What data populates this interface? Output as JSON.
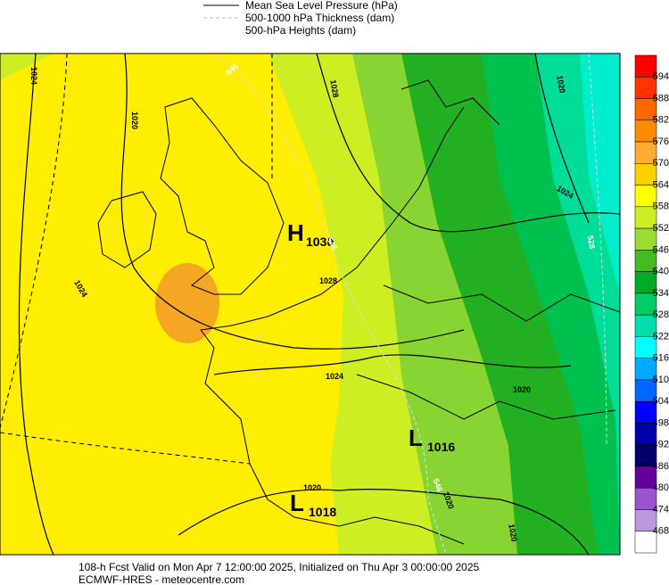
{
  "legend": {
    "items": [
      "Mean Sea Level Pressure (hPa)",
      "500-1000 hPa Thickness (dam)",
      "500-hPa Heights (dam)"
    ]
  },
  "colorbar": {
    "labels": [
      "594",
      "588",
      "582",
      "576",
      "570",
      "564",
      "558",
      "552",
      "546",
      "540",
      "534",
      "528",
      "522",
      "516",
      "510",
      "504",
      "498",
      "492",
      "486",
      "480",
      "474",
      "468"
    ],
    "colors": [
      "#ff0000",
      "#ff3300",
      "#ff6600",
      "#ff8c00",
      "#ffaa33",
      "#ffd000",
      "#ffff00",
      "#ccee22",
      "#99dd33",
      "#44bb22",
      "#00aa22",
      "#00cc66",
      "#00ddaa",
      "#00ffff",
      "#00aaff",
      "#0066ff",
      "#0000ff",
      "#0000aa",
      "#000066",
      "#660099",
      "#9955cc",
      "#bb99dd",
      "#ffffff"
    ]
  },
  "centers": [
    {
      "symbol": "H",
      "value": "1030"
    },
    {
      "symbol": "L",
      "value": "1016"
    },
    {
      "symbol": "L",
      "value": "1018"
    }
  ],
  "contour_labels": [
    "1024",
    "1020",
    "1028",
    "1024",
    "1024",
    "1020",
    "1020",
    "1020",
    "1020",
    "1024",
    "1020",
    "1028",
    "546",
    "546",
    "546",
    "528"
  ],
  "footer": [
    "108-h Fcst Valid on Mon Apr  7 12:00:00 2025, Initialized on Thu Apr  3 00:00:00 2025",
    "ECMWF-HRES  - meteocentre.com"
  ]
}
